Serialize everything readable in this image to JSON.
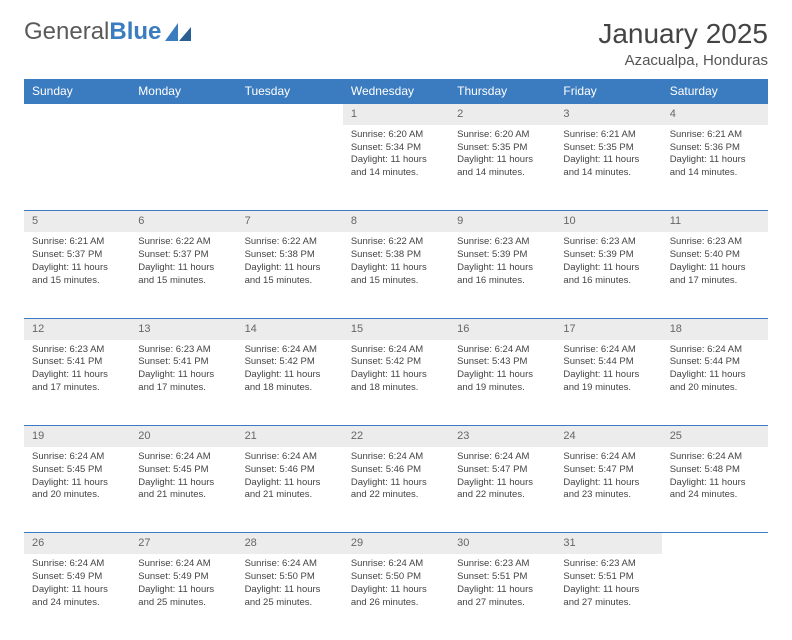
{
  "brand": {
    "name_1": "General",
    "name_2": "Blue"
  },
  "title": "January 2025",
  "location": "Azacualpa, Honduras",
  "colors": {
    "header_bg": "#3b7bbf",
    "header_text": "#ffffff",
    "daynum_bg": "#ececec",
    "border": "#3b7bbf",
    "text": "#444444"
  },
  "weekdays": [
    "Sunday",
    "Monday",
    "Tuesday",
    "Wednesday",
    "Thursday",
    "Friday",
    "Saturday"
  ],
  "weeks": [
    {
      "nums": [
        "",
        "",
        "",
        "1",
        "2",
        "3",
        "4"
      ],
      "cells": [
        null,
        null,
        null,
        {
          "sr": "Sunrise: 6:20 AM",
          "ss": "Sunset: 5:34 PM",
          "d1": "Daylight: 11 hours",
          "d2": "and 14 minutes."
        },
        {
          "sr": "Sunrise: 6:20 AM",
          "ss": "Sunset: 5:35 PM",
          "d1": "Daylight: 11 hours",
          "d2": "and 14 minutes."
        },
        {
          "sr": "Sunrise: 6:21 AM",
          "ss": "Sunset: 5:35 PM",
          "d1": "Daylight: 11 hours",
          "d2": "and 14 minutes."
        },
        {
          "sr": "Sunrise: 6:21 AM",
          "ss": "Sunset: 5:36 PM",
          "d1": "Daylight: 11 hours",
          "d2": "and 14 minutes."
        }
      ]
    },
    {
      "nums": [
        "5",
        "6",
        "7",
        "8",
        "9",
        "10",
        "11"
      ],
      "cells": [
        {
          "sr": "Sunrise: 6:21 AM",
          "ss": "Sunset: 5:37 PM",
          "d1": "Daylight: 11 hours",
          "d2": "and 15 minutes."
        },
        {
          "sr": "Sunrise: 6:22 AM",
          "ss": "Sunset: 5:37 PM",
          "d1": "Daylight: 11 hours",
          "d2": "and 15 minutes."
        },
        {
          "sr": "Sunrise: 6:22 AM",
          "ss": "Sunset: 5:38 PM",
          "d1": "Daylight: 11 hours",
          "d2": "and 15 minutes."
        },
        {
          "sr": "Sunrise: 6:22 AM",
          "ss": "Sunset: 5:38 PM",
          "d1": "Daylight: 11 hours",
          "d2": "and 15 minutes."
        },
        {
          "sr": "Sunrise: 6:23 AM",
          "ss": "Sunset: 5:39 PM",
          "d1": "Daylight: 11 hours",
          "d2": "and 16 minutes."
        },
        {
          "sr": "Sunrise: 6:23 AM",
          "ss": "Sunset: 5:39 PM",
          "d1": "Daylight: 11 hours",
          "d2": "and 16 minutes."
        },
        {
          "sr": "Sunrise: 6:23 AM",
          "ss": "Sunset: 5:40 PM",
          "d1": "Daylight: 11 hours",
          "d2": "and 17 minutes."
        }
      ]
    },
    {
      "nums": [
        "12",
        "13",
        "14",
        "15",
        "16",
        "17",
        "18"
      ],
      "cells": [
        {
          "sr": "Sunrise: 6:23 AM",
          "ss": "Sunset: 5:41 PM",
          "d1": "Daylight: 11 hours",
          "d2": "and 17 minutes."
        },
        {
          "sr": "Sunrise: 6:23 AM",
          "ss": "Sunset: 5:41 PM",
          "d1": "Daylight: 11 hours",
          "d2": "and 17 minutes."
        },
        {
          "sr": "Sunrise: 6:24 AM",
          "ss": "Sunset: 5:42 PM",
          "d1": "Daylight: 11 hours",
          "d2": "and 18 minutes."
        },
        {
          "sr": "Sunrise: 6:24 AM",
          "ss": "Sunset: 5:42 PM",
          "d1": "Daylight: 11 hours",
          "d2": "and 18 minutes."
        },
        {
          "sr": "Sunrise: 6:24 AM",
          "ss": "Sunset: 5:43 PM",
          "d1": "Daylight: 11 hours",
          "d2": "and 19 minutes."
        },
        {
          "sr": "Sunrise: 6:24 AM",
          "ss": "Sunset: 5:44 PM",
          "d1": "Daylight: 11 hours",
          "d2": "and 19 minutes."
        },
        {
          "sr": "Sunrise: 6:24 AM",
          "ss": "Sunset: 5:44 PM",
          "d1": "Daylight: 11 hours",
          "d2": "and 20 minutes."
        }
      ]
    },
    {
      "nums": [
        "19",
        "20",
        "21",
        "22",
        "23",
        "24",
        "25"
      ],
      "cells": [
        {
          "sr": "Sunrise: 6:24 AM",
          "ss": "Sunset: 5:45 PM",
          "d1": "Daylight: 11 hours",
          "d2": "and 20 minutes."
        },
        {
          "sr": "Sunrise: 6:24 AM",
          "ss": "Sunset: 5:45 PM",
          "d1": "Daylight: 11 hours",
          "d2": "and 21 minutes."
        },
        {
          "sr": "Sunrise: 6:24 AM",
          "ss": "Sunset: 5:46 PM",
          "d1": "Daylight: 11 hours",
          "d2": "and 21 minutes."
        },
        {
          "sr": "Sunrise: 6:24 AM",
          "ss": "Sunset: 5:46 PM",
          "d1": "Daylight: 11 hours",
          "d2": "and 22 minutes."
        },
        {
          "sr": "Sunrise: 6:24 AM",
          "ss": "Sunset: 5:47 PM",
          "d1": "Daylight: 11 hours",
          "d2": "and 22 minutes."
        },
        {
          "sr": "Sunrise: 6:24 AM",
          "ss": "Sunset: 5:47 PM",
          "d1": "Daylight: 11 hours",
          "d2": "and 23 minutes."
        },
        {
          "sr": "Sunrise: 6:24 AM",
          "ss": "Sunset: 5:48 PM",
          "d1": "Daylight: 11 hours",
          "d2": "and 24 minutes."
        }
      ]
    },
    {
      "nums": [
        "26",
        "27",
        "28",
        "29",
        "30",
        "31",
        ""
      ],
      "cells": [
        {
          "sr": "Sunrise: 6:24 AM",
          "ss": "Sunset: 5:49 PM",
          "d1": "Daylight: 11 hours",
          "d2": "and 24 minutes."
        },
        {
          "sr": "Sunrise: 6:24 AM",
          "ss": "Sunset: 5:49 PM",
          "d1": "Daylight: 11 hours",
          "d2": "and 25 minutes."
        },
        {
          "sr": "Sunrise: 6:24 AM",
          "ss": "Sunset: 5:50 PM",
          "d1": "Daylight: 11 hours",
          "d2": "and 25 minutes."
        },
        {
          "sr": "Sunrise: 6:24 AM",
          "ss": "Sunset: 5:50 PM",
          "d1": "Daylight: 11 hours",
          "d2": "and 26 minutes."
        },
        {
          "sr": "Sunrise: 6:23 AM",
          "ss": "Sunset: 5:51 PM",
          "d1": "Daylight: 11 hours",
          "d2": "and 27 minutes."
        },
        {
          "sr": "Sunrise: 6:23 AM",
          "ss": "Sunset: 5:51 PM",
          "d1": "Daylight: 11 hours",
          "d2": "and 27 minutes."
        },
        null
      ]
    }
  ]
}
